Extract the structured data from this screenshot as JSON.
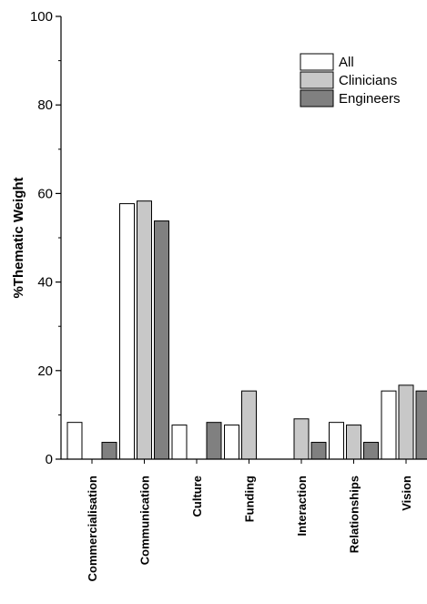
{
  "chart_data": {
    "type": "bar",
    "title": "",
    "xlabel": "",
    "ylabel": "%Thematic Weight",
    "ylim": [
      0,
      100
    ],
    "yticks": [
      0,
      20,
      40,
      60,
      80,
      100
    ],
    "grid": false,
    "legend_position": "top-right",
    "categories": [
      "Commercialisation",
      "Communication",
      "Culture",
      "Funding",
      "Interaction",
      "Relationships",
      "Vision"
    ],
    "series": [
      {
        "name": "All",
        "color": "#ffffff",
        "values": [
          8.3,
          57.7,
          7.7,
          7.7,
          0,
          8.3,
          15.4
        ]
      },
      {
        "name": "Clinicians",
        "color": "#c8c8c8",
        "values": [
          0,
          58.3,
          0,
          15.4,
          9.1,
          7.7,
          16.7
        ]
      },
      {
        "name": "Engineers",
        "color": "#808080",
        "values": [
          3.8,
          53.8,
          8.3,
          0,
          3.8,
          3.8,
          15.4
        ]
      }
    ]
  }
}
